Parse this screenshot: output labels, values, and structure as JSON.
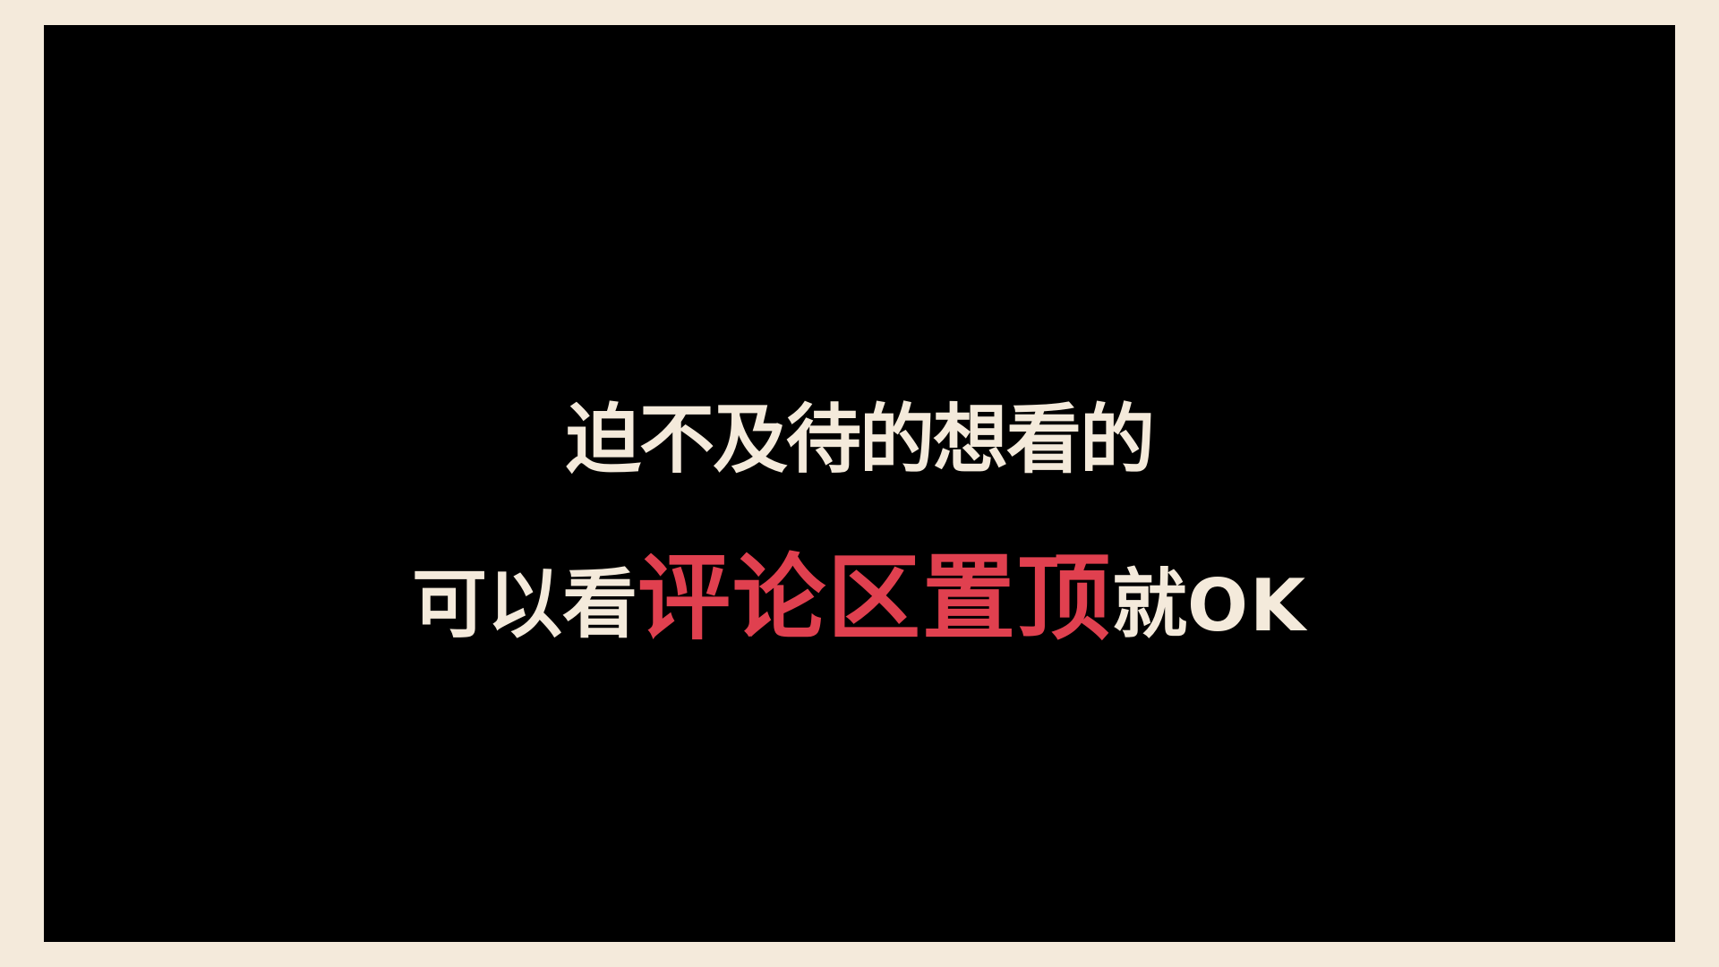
{
  "colors": {
    "background": "#F4EADB",
    "frame": "#000000",
    "text": "#F4EADB",
    "accent": "#E0404F"
  },
  "caption": {
    "line1": "迫不及待的想看的",
    "line2": {
      "before": "可以看",
      "highlight": "评论区置顶",
      "after_cn": "就",
      "after_en": "OK"
    }
  }
}
